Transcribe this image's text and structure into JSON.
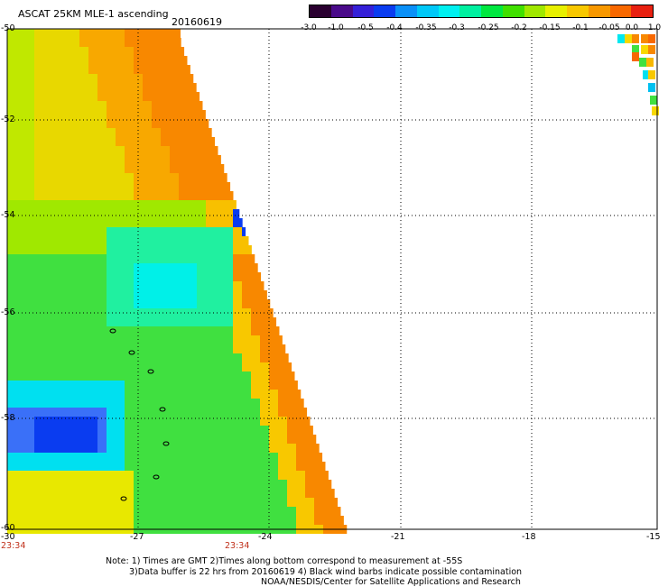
{
  "header": {
    "title": "ASCAT 25KM MLE-1 ascending",
    "date": "20160619"
  },
  "colorbar": {
    "colors": [
      "#2a0030",
      "#4a0a8a",
      "#3520d8",
      "#0a3cf0",
      "#0a90f8",
      "#00c8f8",
      "#00f0f0",
      "#00f0a0",
      "#00e840",
      "#40e000",
      "#a0e800",
      "#e8f000",
      "#f8c800",
      "#f89800",
      "#f86800",
      "#e82010"
    ],
    "tick_labels": [
      "-3.0",
      "-1.0",
      "-0.5",
      "-0.4",
      "-0.35",
      "-0.3",
      "-0.25",
      "-0.2",
      "-0.15",
      "-0.1",
      "-0.05",
      "0.0",
      "1.0"
    ]
  },
  "map": {
    "lat_labels": [
      "-50",
      "-52",
      "-54",
      "-56",
      "-58",
      "-60"
    ],
    "lon_labels": [
      "-30",
      "-27",
      "-24",
      "-21",
      "-18",
      "-15"
    ],
    "times": [
      "23:34",
      "23:34"
    ]
  },
  "notes": {
    "line1": "Note: 1) Times are GMT 2)Times along bottom correspond to measurement at -55S",
    "line2": "3)Data buffer is 22 hrs from 20160619 4) Black wind barbs indicate possible contamination",
    "line3": "NOAA/NESDIS/Center for Satellite Applications and Research"
  }
}
